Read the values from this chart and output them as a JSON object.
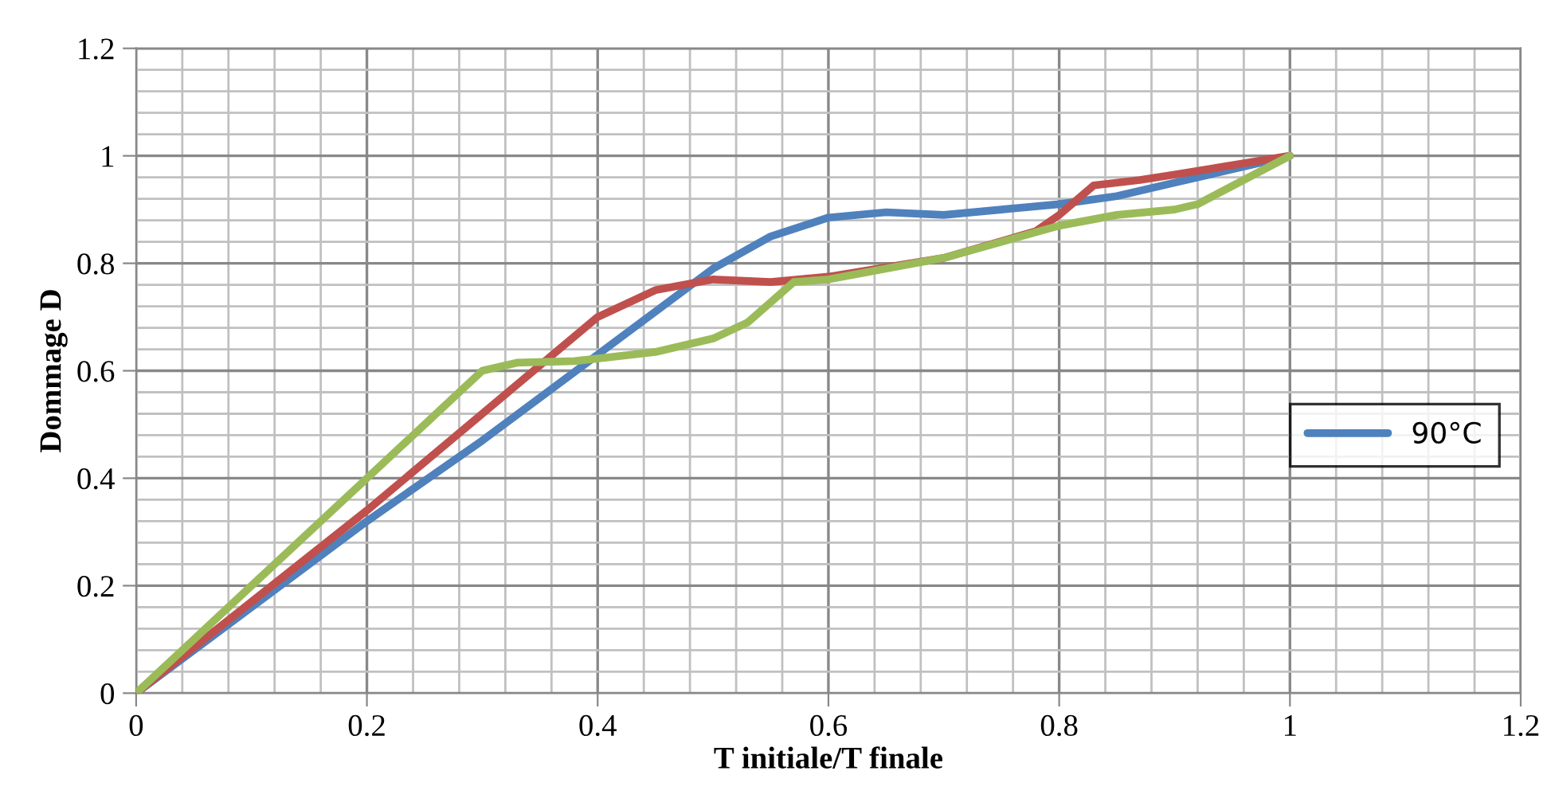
{
  "chart_data": {
    "type": "line",
    "xlabel": "T initiale/T finale",
    "ylabel": "Dommage D",
    "xlim": [
      0,
      1.2
    ],
    "xticks": [
      0,
      0.2,
      0.4,
      0.6,
      0.8,
      1,
      1.2
    ],
    "ylim": [
      0,
      1.2
    ],
    "yticks": [
      0,
      0.2,
      0.4,
      0.6,
      0.8,
      1,
      1.2
    ],
    "grid": true,
    "legend": "right",
    "marker": "none",
    "line_style": "solid",
    "series": [
      {
        "name": "90°C",
        "color": "#4f81bd",
        "x": [
          0,
          0.1,
          0.2,
          0.3,
          0.4,
          0.5,
          0.55,
          0.6,
          0.65,
          0.7,
          0.75,
          0.8,
          0.85,
          0.9,
          1
        ],
        "values": [
          0,
          0.16,
          0.32,
          0.47,
          0.63,
          0.79,
          0.85,
          0.885,
          0.895,
          0.89,
          0.9,
          0.91,
          0.925,
          0.95,
          1
        ]
      },
      {
        "color": "#c0504d",
        "x": [
          0,
          0.1,
          0.2,
          0.3,
          0.4,
          0.45,
          0.5,
          0.55,
          0.6,
          0.7,
          0.78,
          0.8,
          0.83,
          0.87,
          0.9,
          1
        ],
        "values": [
          0,
          0.17,
          0.34,
          0.52,
          0.7,
          0.75,
          0.77,
          0.765,
          0.775,
          0.81,
          0.86,
          0.89,
          0.945,
          0.955,
          0.965,
          1
        ]
      },
      {
        "color": "#9bbb59",
        "x": [
          0,
          0.1,
          0.2,
          0.3,
          0.33,
          0.38,
          0.45,
          0.5,
          0.53,
          0.57,
          0.6,
          0.7,
          0.8,
          0.85,
          0.9,
          0.92,
          1
        ],
        "values": [
          0,
          0.2,
          0.4,
          0.6,
          0.615,
          0.618,
          0.635,
          0.66,
          0.69,
          0.765,
          0.77,
          0.81,
          0.87,
          0.89,
          0.9,
          0.91,
          1
        ]
      }
    ]
  }
}
